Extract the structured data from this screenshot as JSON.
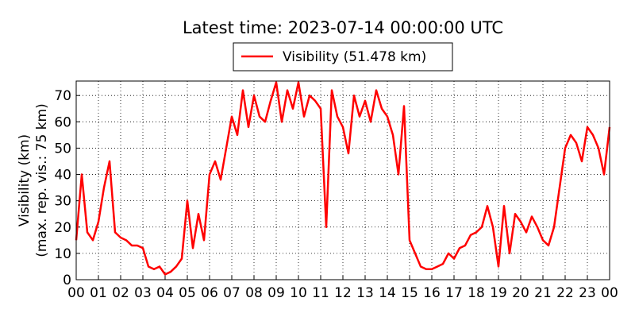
{
  "chart_data": {
    "type": "line",
    "title": "Latest time: 2023-07-14 00:00:00 UTC",
    "ylabel": [
      "Visibility (km)",
      "(max. rep. vis.: 75 km)"
    ],
    "grid": true,
    "xlim": [
      0,
      24
    ],
    "ylim": [
      0,
      75.5
    ],
    "yticks": [
      0,
      10,
      20,
      30,
      40,
      50,
      60,
      70
    ],
    "xticks": [
      {
        "value": 0,
        "label": "00"
      },
      {
        "value": 1,
        "label": "01"
      },
      {
        "value": 2,
        "label": "02"
      },
      {
        "value": 3,
        "label": "03"
      },
      {
        "value": 4,
        "label": "04"
      },
      {
        "value": 5,
        "label": "05"
      },
      {
        "value": 6,
        "label": "06"
      },
      {
        "value": 7,
        "label": "07"
      },
      {
        "value": 8,
        "label": "08"
      },
      {
        "value": 9,
        "label": "09"
      },
      {
        "value": 10,
        "label": "10"
      },
      {
        "value": 11,
        "label": "11"
      },
      {
        "value": 12,
        "label": "12"
      },
      {
        "value": 13,
        "label": "13"
      },
      {
        "value": 14,
        "label": "14"
      },
      {
        "value": 15,
        "label": "15"
      },
      {
        "value": 16,
        "label": "16"
      },
      {
        "value": 17,
        "label": "17"
      },
      {
        "value": 18,
        "label": "18"
      },
      {
        "value": 19,
        "label": "19"
      },
      {
        "value": 20,
        "label": "20"
      },
      {
        "value": 21,
        "label": "21"
      },
      {
        "value": 22,
        "label": "22"
      },
      {
        "value": 23,
        "label": "23"
      },
      {
        "value": 24,
        "label": "00"
      }
    ],
    "x": [
      0,
      0.25,
      0.5,
      0.75,
      1,
      1.25,
      1.5,
      1.75,
      2,
      2.25,
      2.5,
      2.75,
      3,
      3.25,
      3.5,
      3.75,
      4,
      4.25,
      4.5,
      4.75,
      5,
      5.25,
      5.5,
      5.75,
      6,
      6.25,
      6.5,
      6.75,
      7,
      7.25,
      7.5,
      7.75,
      8,
      8.25,
      8.5,
      8.75,
      9,
      9.25,
      9.5,
      9.75,
      10,
      10.25,
      10.5,
      10.75,
      11,
      11.25,
      11.5,
      11.75,
      12,
      12.25,
      12.5,
      12.75,
      13,
      13.25,
      13.5,
      13.75,
      14,
      14.25,
      14.5,
      14.75,
      15,
      15.25,
      15.5,
      15.75,
      16,
      16.25,
      16.5,
      16.75,
      17,
      17.25,
      17.5,
      17.75,
      18,
      18.25,
      18.5,
      18.75,
      19,
      19.25,
      19.5,
      19.75,
      20,
      20.25,
      20.5,
      20.75,
      21,
      21.25,
      21.5,
      21.75,
      22,
      22.25,
      22.5,
      22.75,
      23,
      23.25,
      23.5,
      23.75,
      24
    ],
    "series": [
      {
        "name": "Visibility (51.478 km)",
        "color": "#ff0000",
        "values": [
          15,
          40,
          18,
          15,
          22,
          35,
          45,
          18,
          16,
          15,
          13,
          13,
          12,
          5,
          4,
          5,
          2,
          3,
          5,
          8,
          30,
          12,
          25,
          15,
          40,
          45,
          38,
          50,
          62,
          55,
          72,
          58,
          70,
          62,
          60,
          68,
          75,
          60,
          72,
          65,
          75,
          62,
          70,
          68,
          65,
          20,
          72,
          62,
          58,
          48,
          70,
          62,
          68,
          60,
          72,
          65,
          62,
          55,
          40,
          66,
          15,
          10,
          5,
          4,
          4,
          5,
          6,
          10,
          8,
          12,
          13,
          17,
          18,
          20,
          28,
          20,
          5,
          28,
          10,
          25,
          22,
          18,
          24,
          20,
          15,
          13,
          20,
          35,
          50,
          55,
          52,
          45,
          58,
          55,
          50,
          40,
          58
        ]
      }
    ]
  }
}
